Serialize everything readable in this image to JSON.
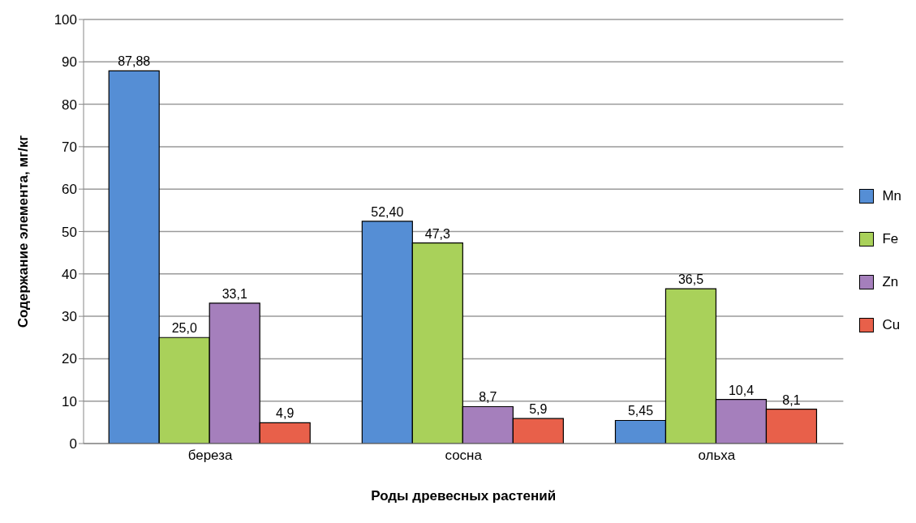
{
  "chart_data": {
    "type": "bar",
    "xlabel": "Роды древесных растений",
    "ylabel": "Содержание элемента, мг/кг",
    "categories": [
      "береза",
      "сосна",
      "ольха"
    ],
    "series": [
      {
        "name": "Mn",
        "color": "#558ed5",
        "values": [
          87.88,
          52.4,
          5.45
        ],
        "value_labels": [
          "87,88",
          "52,40",
          "5,45"
        ]
      },
      {
        "name": "Fe",
        "color": "#a9d15a",
        "values": [
          25.0,
          47.3,
          36.5
        ],
        "value_labels": [
          "25,0",
          "47,3",
          "36,5"
        ]
      },
      {
        "name": "Zn",
        "color": "#a57fbc",
        "values": [
          33.1,
          8.7,
          10.4
        ],
        "value_labels": [
          "33,1",
          "8,7",
          "10,4"
        ]
      },
      {
        "name": "Cu",
        "color": "#e8604a",
        "values": [
          4.9,
          5.9,
          8.1
        ],
        "value_labels": [
          "4,9",
          "5,9",
          "8,1"
        ]
      }
    ],
    "ylim": [
      0,
      100
    ],
    "yticks": [
      0,
      10,
      20,
      30,
      40,
      50,
      60,
      70,
      80,
      90,
      100
    ],
    "grid": "y",
    "legend": "right"
  }
}
